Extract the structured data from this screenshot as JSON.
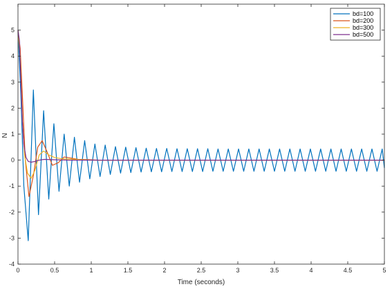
{
  "chart_data": {
    "type": "line",
    "title": "",
    "xlabel": "Time (seconds)",
    "ylabel": "N",
    "xlim": [
      0,
      5
    ],
    "ylim": [
      -4,
      6
    ],
    "x_ticks": [
      0,
      0.5,
      1,
      1.5,
      2,
      2.5,
      3,
      3.5,
      4,
      4.5,
      5
    ],
    "x_tick_labels": [
      "0",
      "0.5",
      "1",
      "1.5",
      "2",
      "2.5",
      "3",
      "3.5",
      "4",
      "4.5",
      "5"
    ],
    "y_ticks": [
      -4,
      -3,
      -2,
      -1,
      0,
      1,
      2,
      3,
      4,
      5
    ],
    "y_tick_labels": [
      "-4",
      "-3",
      "-2",
      "-1",
      "0",
      "1",
      "2",
      "3",
      "4",
      "5"
    ],
    "grid": false,
    "legend_position": "top-right",
    "series": [
      {
        "name": "bd=100",
        "color": "#0072BD",
        "x": [
          0,
          0.04,
          0.08,
          0.14,
          0.21,
          0.28,
          0.35,
          0.42,
          0.49,
          0.56,
          0.63,
          0.7,
          0.77,
          0.84,
          0.91,
          0.98,
          1.05,
          1.12,
          1.19,
          1.26,
          1.33,
          1.4,
          1.47,
          1.54,
          1.61,
          1.68,
          1.75,
          1.82,
          1.89,
          1.96,
          2.03,
          2.1,
          2.17,
          2.24,
          2.31,
          2.38,
          2.45,
          2.52,
          2.59,
          2.66,
          2.73,
          2.8,
          2.87,
          2.94,
          3.01,
          3.08,
          3.15,
          3.22,
          3.29,
          3.36,
          3.43,
          3.5,
          3.57,
          3.64,
          3.71,
          3.78,
          3.85,
          3.92,
          3.99,
          4.06,
          4.13,
          4.2,
          4.27,
          4.34,
          4.41,
          4.48,
          4.55,
          4.62,
          4.69,
          4.76,
          4.83,
          4.9,
          4.97,
          5.0
        ],
        "y": [
          5.0,
          2.5,
          -1.0,
          -3.1,
          2.7,
          -2.1,
          1.9,
          -1.5,
          1.4,
          -1.2,
          1.0,
          -1.0,
          0.88,
          -0.85,
          0.75,
          -0.72,
          0.62,
          -0.63,
          0.58,
          -0.55,
          0.52,
          -0.5,
          0.5,
          -0.48,
          0.48,
          -0.46,
          0.46,
          -0.45,
          0.45,
          -0.45,
          0.45,
          -0.44,
          0.44,
          -0.44,
          0.44,
          -0.44,
          0.44,
          -0.44,
          0.44,
          -0.43,
          0.43,
          -0.43,
          0.43,
          -0.43,
          0.43,
          -0.43,
          0.43,
          -0.43,
          0.43,
          -0.43,
          0.43,
          -0.43,
          0.43,
          -0.43,
          0.43,
          -0.43,
          0.43,
          -0.43,
          0.43,
          -0.43,
          0.43,
          -0.43,
          0.43,
          -0.43,
          0.43,
          -0.43,
          0.43,
          -0.43,
          0.43,
          -0.43,
          0.43,
          -0.43,
          0.43,
          -0.3
        ]
      },
      {
        "name": "bd=200",
        "color": "#D95319",
        "x": [
          0,
          0.03,
          0.06,
          0.1,
          0.15,
          0.21,
          0.27,
          0.33,
          0.4,
          0.47,
          0.55,
          0.63,
          0.72,
          0.82,
          0.95,
          1.1,
          1.3,
          1.6,
          2.0,
          3.0,
          4.0,
          5.0
        ],
        "y": [
          5.0,
          4.3,
          2.5,
          0.0,
          -1.4,
          -0.6,
          0.5,
          0.75,
          0.3,
          -0.2,
          -0.1,
          0.12,
          0.08,
          0.03,
          0.02,
          0.0,
          0.0,
          0.0,
          0.0,
          0.0,
          0.0,
          0.0
        ]
      },
      {
        "name": "bd=300",
        "color": "#EDB120",
        "x": [
          0,
          0.03,
          0.06,
          0.09,
          0.13,
          0.18,
          0.23,
          0.29,
          0.35,
          0.42,
          0.5,
          0.6,
          0.72,
          0.85,
          1.0,
          1.3,
          1.6,
          2.0,
          3.0,
          4.0,
          5.0
        ],
        "y": [
          5.0,
          4.0,
          1.5,
          0.2,
          -0.5,
          -0.7,
          -0.4,
          0.2,
          0.35,
          0.2,
          0.1,
          0.05,
          0.04,
          0.02,
          0.0,
          0.0,
          0.0,
          0.0,
          0.0,
          0.0,
          0.0
        ]
      },
      {
        "name": "bd=500",
        "color": "#7E2F8E",
        "x": [
          0,
          0.02,
          0.04,
          0.06,
          0.08,
          0.11,
          0.14,
          0.18,
          0.23,
          0.29,
          0.36,
          0.45,
          0.55,
          0.7,
          0.9,
          1.2,
          1.6,
          2.0,
          3.0,
          4.0,
          5.0
        ],
        "y": [
          5.0,
          4.6,
          3.0,
          1.5,
          0.6,
          0.1,
          -0.05,
          -0.08,
          -0.05,
          0.0,
          0.03,
          0.02,
          0.01,
          0.0,
          0.0,
          0.0,
          0.0,
          0.0,
          0.0,
          0.0,
          0.0
        ]
      }
    ]
  }
}
